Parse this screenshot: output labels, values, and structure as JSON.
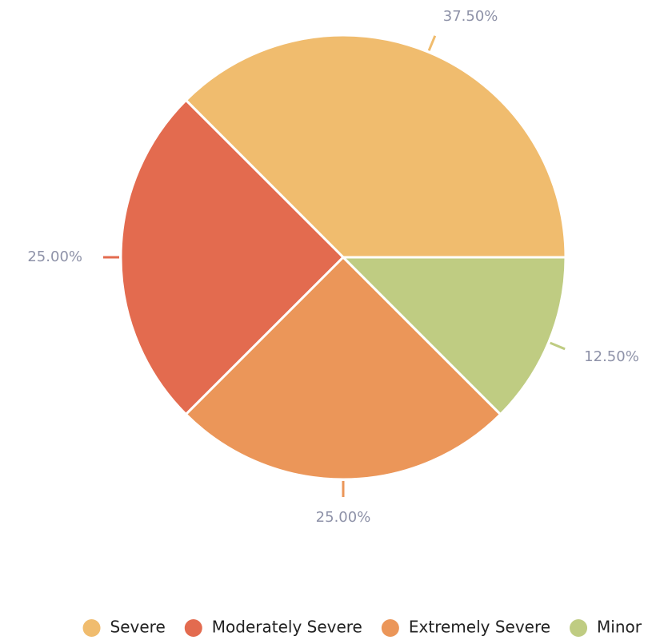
{
  "chart_data": {
    "type": "pie",
    "categories": [
      "Severe",
      "Moderately Severe",
      "Extremely Severe",
      "Minor"
    ],
    "values": [
      37.5,
      25,
      25,
      12.5
    ],
    "value_labels": [
      "37.50%",
      "25.00%",
      "25.00%",
      "12.50%"
    ],
    "colors": [
      "#f0bc6e",
      "#e36b4f",
      "#eb9659",
      "#bfcc82"
    ],
    "legend": "bottom"
  }
}
